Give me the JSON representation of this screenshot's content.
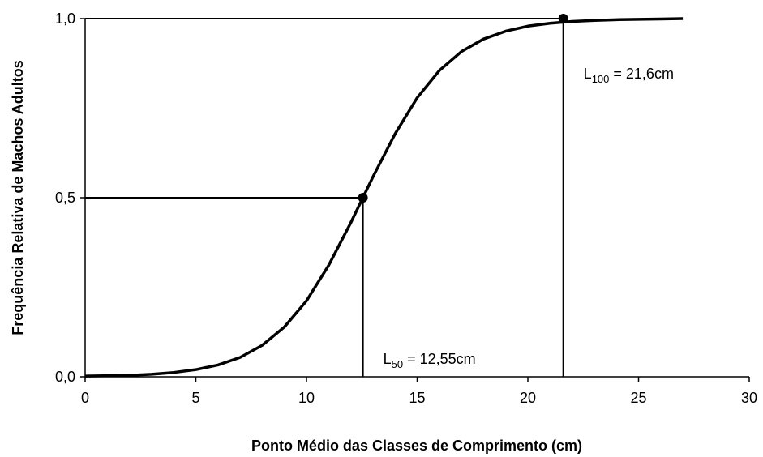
{
  "chart_data": {
    "type": "line",
    "x_label": "Ponto Médio das Classes de Comprimento (cm)",
    "y_label": "Frequência Relativa de Machos Adultos",
    "x": [
      0,
      1,
      2,
      3,
      4,
      5,
      6,
      7,
      8,
      9,
      10,
      11,
      12,
      13,
      14,
      15,
      16,
      17,
      18,
      19,
      20,
      21,
      22,
      23,
      24,
      25,
      26,
      27
    ],
    "series": [
      {
        "color": "#000000",
        "values": [
          0.002,
          0.003,
          0.004,
          0.007,
          0.012,
          0.02,
          0.033,
          0.054,
          0.088,
          0.139,
          0.212,
          0.311,
          0.43,
          0.558,
          0.678,
          0.779,
          0.855,
          0.908,
          0.943,
          0.965,
          0.979,
          0.987,
          0.992,
          0.995,
          0.997,
          0.998,
          0.999,
          1.0
        ]
      }
    ],
    "points": [
      {
        "x": 12.55,
        "y": 0.5,
        "label": [
          "L",
          "50",
          " = 12,55cm"
        ]
      },
      {
        "x": 21.6,
        "y": 1.0,
        "label": [
          "L",
          "100",
          " = 21,6cm"
        ]
      }
    ],
    "xlim": [
      0,
      30
    ],
    "xticks": [
      0,
      5,
      10,
      15,
      20,
      25,
      30
    ],
    "ylim": [
      0,
      1
    ],
    "yticks": [
      {
        "value": 0,
        "label": "0,0"
      },
      {
        "value": 0.5,
        "label": "0,5"
      },
      {
        "value": 1,
        "label": "1,0"
      }
    ],
    "grid": false
  }
}
